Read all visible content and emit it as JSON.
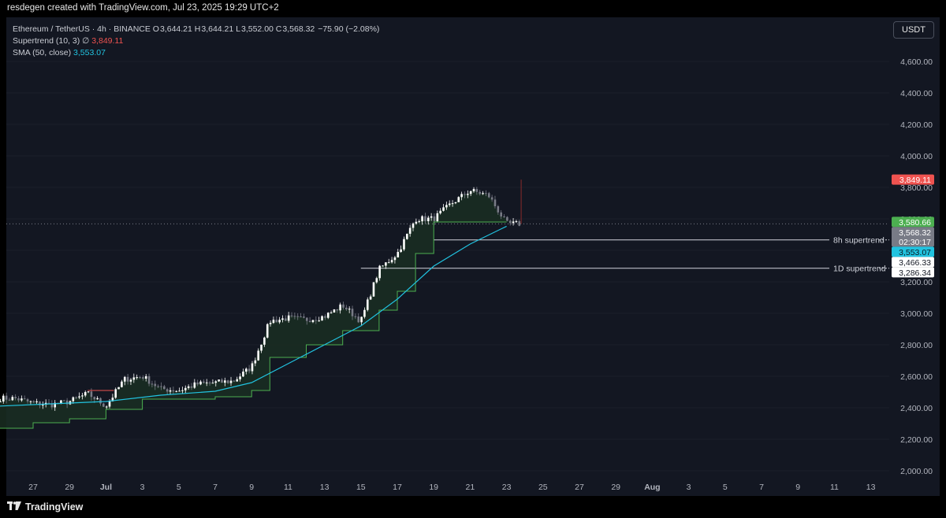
{
  "header": {
    "author_line": "resdegen created with TradingView.com, Jul 23, 2025 19:29 UTC+2"
  },
  "legend": {
    "symbol_line": "Ethereum / TetherUS · 4h · BINANCE",
    "o_label": "O",
    "o_value": "3,644.21",
    "h_label": "H",
    "h_value": "3,644.21",
    "l_label": "L",
    "l_value": "3,552.00",
    "c_label": "C",
    "c_value": "3,568.32",
    "change": "−75.90 (−2.08%)",
    "supertrend_label": "Supertrend (10, 3)",
    "supertrend_icon": "∅",
    "supertrend_value": "3,849.11",
    "sma_label": "SMA (50, close)",
    "sma_value": "3,553.07"
  },
  "currency_button": "USDT",
  "brand_name": "TradingView",
  "colors": {
    "background": "#131722",
    "candle_up": "#ffffff",
    "candle_down": "#787b86",
    "supertrend_up": "#4caf50",
    "supertrend_down": "#ef5350",
    "supertrend_fill": "#1a2e22",
    "sma": "#21c3e0",
    "price_line": "#787b86"
  },
  "chart_data": {
    "type": "candlestick",
    "title": "Ethereum / TetherUS · 4h · BINANCE",
    "ylim": [
      1960,
      4800
    ],
    "y_ticks": [
      "4,600.00",
      "4,400.00",
      "4,200.00",
      "4,000.00",
      "3,800.00",
      "3,600.00",
      "3,400.00",
      "3,200.00",
      "3,000.00",
      "2,800.00",
      "2,600.00",
      "2,400.00",
      "2,200.00",
      "2,000.00"
    ],
    "x_ticks": [
      "27",
      "29",
      "Jul",
      "3",
      "5",
      "7",
      "9",
      "11",
      "13",
      "15",
      "17",
      "19",
      "21",
      "23",
      "25",
      "27",
      "29",
      "Aug",
      "3",
      "5",
      "7",
      "9",
      "11",
      "13"
    ],
    "anchors": [
      [
        "Jun 26",
        2460
      ],
      [
        "Jun 27",
        2430
      ],
      [
        "Jun 28",
        2420
      ],
      [
        "Jun 29",
        2440
      ],
      [
        "Jun 30",
        2490
      ],
      [
        "Jul 1",
        2410
      ],
      [
        "Jul 2",
        2580
      ],
      [
        "Jul 3",
        2600
      ],
      [
        "Jul 4",
        2520
      ],
      [
        "Jul 5",
        2510
      ],
      [
        "Jul 6",
        2550
      ],
      [
        "Jul 7",
        2560
      ],
      [
        "Jul 8",
        2570
      ],
      [
        "Jul 9",
        2660
      ],
      [
        "Jul 10",
        2950
      ],
      [
        "Jul 11",
        2970
      ],
      [
        "Jul 12",
        2960
      ],
      [
        "Jul 13",
        2980
      ],
      [
        "Jul 14",
        3050
      ],
      [
        "Jul 15",
        2950
      ],
      [
        "Jul 16",
        3280
      ],
      [
        "Jul 17",
        3380
      ],
      [
        "Jul 18",
        3600
      ],
      [
        "Jul 19",
        3600
      ],
      [
        "Jul 20",
        3700
      ],
      [
        "Jul 21",
        3780
      ],
      [
        "Jul 22",
        3750
      ],
      [
        "Jul 23",
        3568
      ]
    ],
    "supertrend": [
      [
        "Jun 25",
        2270
      ],
      [
        "Jun 27",
        2305
      ],
      [
        "Jun 29",
        2330
      ],
      [
        "Jul 1",
        2390
      ],
      [
        "Jul 3",
        2455
      ],
      [
        "Jul 7",
        2470
      ],
      [
        "Jul 9",
        2510
      ],
      [
        "Jul 10",
        2720
      ],
      [
        "Jul 12",
        2800
      ],
      [
        "Jul 14",
        2890
      ],
      [
        "Jul 16",
        3020
      ],
      [
        "Jul 17",
        3140
      ],
      [
        "Jul 18",
        3380
      ],
      [
        "Jul 19",
        3580
      ],
      [
        "Jul 23",
        3580
      ]
    ],
    "supertrend_down": {
      "from": "Jun 30",
      "to": "Jul 1",
      "value": 2510
    },
    "sma": [
      [
        "Jun 25",
        2410
      ],
      [
        "Jun 28",
        2425
      ],
      [
        "Jul 1",
        2440
      ],
      [
        "Jul 4",
        2480
      ],
      [
        "Jul 7",
        2505
      ],
      [
        "Jul 9",
        2560
      ],
      [
        "Jul 11",
        2680
      ],
      [
        "Jul 13",
        2800
      ],
      [
        "Jul 15",
        2920
      ],
      [
        "Jul 17",
        3090
      ],
      [
        "Jul 19",
        3300
      ],
      [
        "Jul 21",
        3440
      ],
      [
        "Jul 23",
        3553
      ]
    ],
    "last_price": 3568.32,
    "countdown": "02:30:17",
    "spike_high": {
      "date": "Jul 23",
      "value": 3849.11
    },
    "horizontal_lines": [
      {
        "label": "8h supertrend",
        "value": 3466.33,
        "from": "Jul 19"
      },
      {
        "label": "1D supertrend",
        "value": 3286.34,
        "from": "Jul 15"
      }
    ],
    "price_labels": [
      {
        "value": 3849.11,
        "text": "3,849.11",
        "bg": "#ef5350",
        "fg": "#ffffff"
      },
      {
        "value": 3580.66,
        "text": "3,580.66",
        "bg": "#4caf50",
        "fg": "#ffffff"
      },
      {
        "value": 3568.32,
        "text": "3,568.32",
        "bg": "#787b86",
        "fg": "#ffffff"
      },
      {
        "value": 3553.07,
        "text": "3,553.07",
        "bg": "#21c3e0",
        "fg": "#0b1a22"
      },
      {
        "value": 3466.33,
        "text": "3,466.33",
        "bg": "#ffffff",
        "fg": "#131722"
      },
      {
        "value": 3286.34,
        "text": "3,286.34",
        "bg": "#ffffff",
        "fg": "#131722"
      }
    ]
  }
}
